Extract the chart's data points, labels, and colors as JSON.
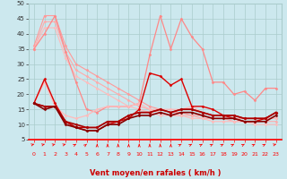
{
  "title": "Vent moyen/en rafales ( km/h )",
  "hours": [
    0,
    1,
    2,
    3,
    4,
    5,
    6,
    7,
    8,
    9,
    10,
    11,
    12,
    13,
    14,
    15,
    16,
    17,
    18,
    19,
    20,
    21,
    22,
    23
  ],
  "background_color": "#cce8ee",
  "grid_color": "#aacccc",
  "lines": [
    {
      "color": "#ff9999",
      "lw": 0.8,
      "marker": "D",
      "ms": 1.5,
      "values": [
        36,
        46,
        46,
        36,
        30,
        28,
        26,
        24,
        22,
        20,
        18,
        16,
        15,
        14,
        14,
        13,
        13,
        12,
        12,
        12,
        12,
        12,
        12,
        12
      ]
    },
    {
      "color": "#ffaaaa",
      "lw": 0.8,
      "marker": "D",
      "ms": 1.5,
      "values": [
        35,
        44,
        44,
        34,
        28,
        26,
        24,
        22,
        20,
        18,
        16,
        15,
        14,
        13,
        13,
        13,
        12,
        12,
        12,
        11,
        11,
        11,
        11,
        11
      ]
    },
    {
      "color": "#ffbbbb",
      "lw": 0.8,
      "marker": "D",
      "ms": 1.5,
      "values": [
        35,
        42,
        42,
        32,
        26,
        24,
        22,
        20,
        18,
        16,
        15,
        14,
        13,
        13,
        13,
        12,
        12,
        11,
        11,
        11,
        11,
        10,
        10,
        10
      ]
    },
    {
      "color": "#ff8888",
      "lw": 0.9,
      "marker": "D",
      "ms": 1.5,
      "values": [
        35,
        40,
        46,
        34,
        24,
        15,
        14,
        16,
        16,
        16,
        17,
        33,
        46,
        35,
        45,
        39,
        35,
        24,
        24,
        20,
        21,
        18,
        22,
        22
      ]
    },
    {
      "color": "#ffbbbb",
      "lw": 0.9,
      "marker": "D",
      "ms": 1.5,
      "values": [
        17,
        24,
        16,
        13,
        12,
        13,
        15,
        16,
        16,
        16,
        17,
        15,
        15,
        15,
        15,
        16,
        14,
        13,
        13,
        13,
        12,
        12,
        12,
        12
      ]
    },
    {
      "color": "#dd0000",
      "lw": 1.0,
      "marker": "D",
      "ms": 1.5,
      "values": [
        17,
        25,
        17,
        11,
        9,
        8,
        8,
        10,
        11,
        12,
        15,
        27,
        26,
        23,
        25,
        16,
        16,
        15,
        13,
        12,
        11,
        11,
        12,
        14
      ]
    },
    {
      "color": "#cc0000",
      "lw": 1.0,
      "marker": "D",
      "ms": 1.5,
      "values": [
        17,
        16,
        16,
        11,
        9,
        9,
        9,
        11,
        11,
        13,
        14,
        14,
        15,
        14,
        15,
        15,
        14,
        13,
        13,
        13,
        12,
        12,
        12,
        14
      ]
    },
    {
      "color": "#aa0000",
      "lw": 1.2,
      "marker": "D",
      "ms": 1.5,
      "values": [
        17,
        16,
        16,
        11,
        10,
        9,
        9,
        11,
        11,
        13,
        14,
        14,
        15,
        14,
        15,
        15,
        14,
        13,
        13,
        13,
        12,
        12,
        12,
        14
      ]
    },
    {
      "color": "#880000",
      "lw": 1.2,
      "marker": "D",
      "ms": 1.5,
      "values": [
        17,
        15,
        16,
        10,
        9,
        8,
        8,
        10,
        10,
        12,
        13,
        13,
        14,
        13,
        14,
        14,
        13,
        12,
        12,
        12,
        11,
        11,
        11,
        13
      ]
    }
  ],
  "ylim": [
    5,
    50
  ],
  "yticks": [
    5,
    10,
    15,
    20,
    25,
    30,
    35,
    40,
    45,
    50
  ],
  "xlim": [
    -0.5,
    23.5
  ]
}
